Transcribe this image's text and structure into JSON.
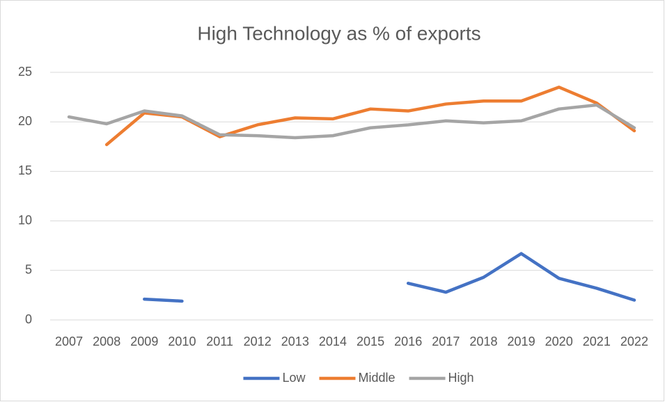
{
  "chart_data": {
    "type": "line",
    "title": "High Technology as % of exports",
    "categories": [
      "2007",
      "2008",
      "2009",
      "2010",
      "2011",
      "2012",
      "2013",
      "2014",
      "2015",
      "2016",
      "2017",
      "2018",
      "2019",
      "2020",
      "2021",
      "2022"
    ],
    "series": [
      {
        "name": "Low",
        "color": "#4472c4",
        "values": [
          null,
          null,
          2.1,
          1.9,
          null,
          null,
          null,
          null,
          null,
          3.7,
          2.8,
          4.3,
          6.7,
          4.2,
          3.2,
          2.0
        ]
      },
      {
        "name": "Middle",
        "color": "#ed7d31",
        "values": [
          null,
          17.7,
          20.9,
          20.5,
          18.5,
          19.7,
          20.4,
          20.3,
          21.3,
          21.1,
          21.8,
          22.1,
          22.1,
          23.5,
          21.9,
          19.1
        ]
      },
      {
        "name": "High",
        "color": "#a5a5a5",
        "values": [
          20.5,
          19.8,
          21.1,
          20.6,
          18.7,
          18.6,
          18.4,
          18.6,
          19.4,
          19.7,
          20.1,
          19.9,
          20.1,
          21.3,
          21.7,
          19.4
        ]
      }
    ],
    "ylim": [
      0,
      25
    ],
    "yticks": [
      0,
      5,
      10,
      15,
      20,
      25
    ],
    "grid": true,
    "legend": "bottom"
  }
}
